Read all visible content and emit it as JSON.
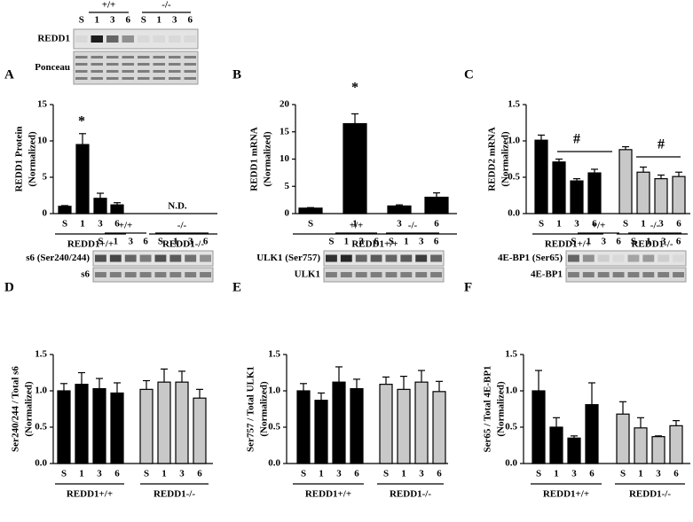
{
  "chart_data": [
    {
      "type": "bar",
      "panel": "A",
      "ylabel": [
        "REDD1 Protein",
        "(Normalized)"
      ],
      "ylim": [
        0,
        15
      ],
      "yticks": [
        0,
        5,
        10,
        15
      ],
      "categories": [
        "S",
        "1",
        "3",
        "6"
      ],
      "series": [
        {
          "name": "REDD1+/+",
          "color": "#000000",
          "values": [
            1.0,
            9.5,
            2.1,
            1.2
          ],
          "errors": [
            0.1,
            1.5,
            0.7,
            0.3
          ]
        }
      ],
      "empty_groups": [
        "REDD1-/-"
      ],
      "annotations": [
        "*",
        "N.D."
      ]
    },
    {
      "type": "bar",
      "panel": "B",
      "ylabel": [
        "REDD1 mRNA",
        "(Normalized)"
      ],
      "ylim": [
        0,
        20
      ],
      "yticks": [
        0,
        5,
        10,
        15,
        20
      ],
      "categories": [
        "S",
        "1",
        "3",
        "6"
      ],
      "series": [
        {
          "name": "REDD1+/+",
          "color": "#000000",
          "values": [
            1.0,
            16.5,
            1.4,
            3.0
          ],
          "errors": [
            0.1,
            1.8,
            0.2,
            0.8
          ]
        }
      ],
      "annotations": [
        "*"
      ]
    },
    {
      "type": "bar",
      "panel": "C",
      "ylabel": [
        "REDD2 mRNA",
        "(Normalized)"
      ],
      "ylim": [
        0,
        1.5
      ],
      "yticks": [
        {
          "value": 0,
          "label": "0.0"
        },
        0.5,
        {
          "value": 1,
          "label": "1.0"
        },
        1.5
      ],
      "categories": [
        "S",
        "1",
        "3",
        "6"
      ],
      "series": [
        {
          "name": "REDD1+/+",
          "color": "#000000",
          "values": [
            1.01,
            0.71,
            0.45,
            0.56
          ],
          "errors": [
            0.07,
            0.04,
            0.03,
            0.05
          ]
        },
        {
          "name": "REDD1-/-",
          "color": "#c8c8c8",
          "values": [
            0.88,
            0.57,
            0.48,
            0.51
          ],
          "errors": [
            0.04,
            0.07,
            0.05,
            0.06
          ]
        }
      ],
      "annotations": [
        "#",
        "#"
      ]
    },
    {
      "type": "bar",
      "panel": "D",
      "ylabel": [
        "Ser240/244 / Total s6",
        "(Normalized)"
      ],
      "ylim": [
        0,
        1.5
      ],
      "yticks": [
        {
          "value": 0,
          "label": "0.0"
        },
        0.5,
        {
          "value": 1,
          "label": "1.0"
        },
        1.5
      ],
      "categories": [
        "S",
        "1",
        "3",
        "6"
      ],
      "series": [
        {
          "name": "REDD1+/+",
          "color": "#000000",
          "values": [
            1.0,
            1.09,
            1.03,
            0.97
          ],
          "errors": [
            0.1,
            0.16,
            0.14,
            0.14
          ]
        },
        {
          "name": "REDD1-/-",
          "color": "#c8c8c8",
          "values": [
            1.02,
            1.12,
            1.12,
            0.9
          ],
          "errors": [
            0.12,
            0.18,
            0.15,
            0.12
          ]
        }
      ]
    },
    {
      "type": "bar",
      "panel": "E",
      "ylabel": [
        "Ser757 / Total ULK1",
        "(Normalized)"
      ],
      "ylim": [
        0,
        1.5
      ],
      "yticks": [
        {
          "value": 0,
          "label": "0.0"
        },
        0.5,
        {
          "value": 1,
          "label": "1.0"
        },
        1.5
      ],
      "categories": [
        "S",
        "1",
        "3",
        "6"
      ],
      "series": [
        {
          "name": "REDD1+/+",
          "color": "#000000",
          "values": [
            1.0,
            0.87,
            1.12,
            1.03
          ],
          "errors": [
            0.1,
            0.1,
            0.21,
            0.13
          ]
        },
        {
          "name": "REDD1-/-",
          "color": "#c8c8c8",
          "values": [
            1.09,
            1.02,
            1.12,
            0.99
          ],
          "errors": [
            0.1,
            0.18,
            0.16,
            0.14
          ]
        }
      ]
    },
    {
      "type": "bar",
      "panel": "F",
      "ylabel": [
        "Ser65 / Total 4E-BP1",
        "(Normalized)"
      ],
      "ylim": [
        0,
        1.5
      ],
      "yticks": [
        {
          "value": 0,
          "label": "0.0"
        },
        0.5,
        {
          "value": 1,
          "label": "1.0"
        },
        1.5
      ],
      "categories": [
        "S",
        "1",
        "3",
        "6"
      ],
      "series": [
        {
          "name": "REDD1+/+",
          "color": "#000000",
          "values": [
            1.0,
            0.5,
            0.35,
            0.81
          ],
          "errors": [
            0.28,
            0.13,
            0.03,
            0.3
          ]
        },
        {
          "name": "REDD1-/-",
          "color": "#c8c8c8",
          "values": [
            0.68,
            0.49,
            0.37,
            0.52
          ],
          "errors": [
            0.17,
            0.14,
            0.01,
            0.07
          ]
        }
      ]
    }
  ],
  "blots": [
    {
      "groups": [
        "+/+",
        "-/-"
      ],
      "lanes": [
        "S",
        "1",
        "3",
        "6",
        "S",
        "1",
        "3",
        "6"
      ],
      "rows": [
        "REDD1",
        "Ponceau"
      ]
    },
    {
      "groups": [
        "+/+",
        "-/-"
      ],
      "lanes": [
        "S",
        "1",
        "3",
        "6",
        "S",
        "1",
        "3",
        "6"
      ],
      "rows": [
        "s6 (Ser240/244)",
        "s6"
      ]
    },
    {
      "groups": [
        "+/+",
        "-/-"
      ],
      "lanes": [
        "S",
        "1",
        "3",
        "6",
        "S",
        "1",
        "3",
        "6"
      ],
      "rows": [
        "ULK1 (Ser757)",
        "ULK1"
      ]
    },
    {
      "groups": [
        "+/+",
        "-/-"
      ],
      "lanes": [
        "S",
        "1",
        "3",
        "6",
        "S",
        "1",
        "3",
        "6"
      ],
      "rows": [
        "4E-BP1 (Ser65)",
        "4E-BP1"
      ]
    }
  ]
}
